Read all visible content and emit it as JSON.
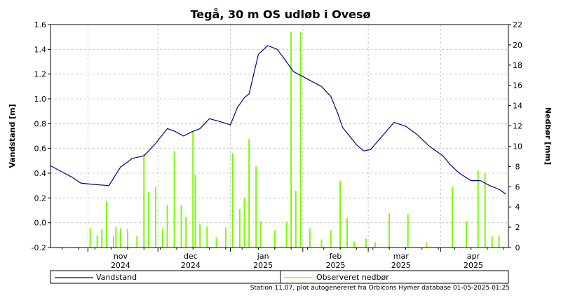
{
  "chart_data": {
    "type": "line",
    "title": "Tegå, 30 m OS udløb i Ovesø",
    "ylabel": "Vandstand [m]",
    "y2label": "Nedbør [mm]",
    "ylim": [
      -0.2,
      1.6
    ],
    "y2lim": [
      0,
      22
    ],
    "yticks": [
      "-0.2",
      "0.0",
      "0.2",
      "0.4",
      "0.6",
      "0.8",
      "1.0",
      "1.2",
      "1.4",
      "1.6"
    ],
    "y2ticks": [
      "0",
      "2",
      "4",
      "6",
      "8",
      "10",
      "12",
      "14",
      "16",
      "18",
      "20",
      "22"
    ],
    "xlim": [
      "2024-10-16",
      "2025-04-30"
    ],
    "x_month_labels": [
      {
        "month": "nov",
        "year": "2024",
        "date": "2024-11-15"
      },
      {
        "month": "dec",
        "year": "2024",
        "date": "2024-12-15"
      },
      {
        "month": "jan",
        "year": "2025",
        "date": "2025-01-15"
      },
      {
        "month": "feb",
        "year": "2025",
        "date": "2025-02-15"
      },
      {
        "month": "mar",
        "year": "2025",
        "date": "2025-03-15"
      },
      {
        "month": "apr",
        "year": "2025",
        "date": "2025-04-15"
      }
    ],
    "grid": true,
    "series": [
      {
        "name": "Vandstand",
        "type": "line",
        "axis": "left",
        "color": "#00008b",
        "x": [
          "2024-10-16",
          "2024-10-20",
          "2024-10-25",
          "2024-10-29",
          "2024-11-03",
          "2024-11-10",
          "2024-11-15",
          "2024-11-18",
          "2024-11-20",
          "2024-11-25",
          "2024-11-30",
          "2024-12-05",
          "2024-12-08",
          "2024-12-12",
          "2024-12-15",
          "2024-12-19",
          "2024-12-23",
          "2024-12-27",
          "2025-01-01",
          "2025-01-04",
          "2025-01-07",
          "2025-01-09",
          "2025-01-13",
          "2025-01-17",
          "2025-01-21",
          "2025-01-25",
          "2025-01-28",
          "2025-02-01",
          "2025-02-05",
          "2025-02-09",
          "2025-02-13",
          "2025-02-16",
          "2025-02-16",
          "2025-02-18",
          "2025-02-21",
          "2025-02-24",
          "2025-02-27",
          "2025-03-02",
          "2025-03-07",
          "2025-03-12",
          "2025-03-17",
          "2025-03-22",
          "2025-03-27",
          "2025-04-02",
          "2025-04-05",
          "2025-04-09",
          "2025-04-14",
          "2025-04-18",
          "2025-04-22",
          "2025-04-26",
          "2025-04-29"
        ],
        "values": [
          0.46,
          0.42,
          0.37,
          0.32,
          0.31,
          0.3,
          0.45,
          0.49,
          0.52,
          0.54,
          0.64,
          0.76,
          0.74,
          0.7,
          0.73,
          0.76,
          0.84,
          0.82,
          0.79,
          0.93,
          1.01,
          1.04,
          1.36,
          1.43,
          1.4,
          1.3,
          1.22,
          1.18,
          1.14,
          1.1,
          1.02,
          0.88,
          0.88,
          0.77,
          0.7,
          0.63,
          0.58,
          0.59,
          0.7,
          0.81,
          0.78,
          0.71,
          0.62,
          0.54,
          0.47,
          0.4,
          0.34,
          0.34,
          0.3,
          0.27,
          0.23
        ]
      },
      {
        "name": "Observeret nedbør",
        "type": "bar",
        "axis": "right",
        "color": "#7cfc00",
        "x": [
          "2024-11-02",
          "2024-11-05",
          "2024-11-07",
          "2024-11-09",
          "2024-11-12",
          "2024-11-13",
          "2024-11-15",
          "2024-11-18",
          "2024-11-22",
          "2024-11-25",
          "2024-11-27",
          "2024-11-30",
          "2024-12-03",
          "2024-12-05",
          "2024-12-08",
          "2024-12-11",
          "2024-12-13",
          "2024-12-16",
          "2024-12-17",
          "2024-12-19",
          "2024-12-22",
          "2024-12-26",
          "2024-12-30",
          "2025-01-02",
          "2025-01-05",
          "2025-01-07",
          "2025-01-09",
          "2025-01-12",
          "2025-01-14",
          "2025-01-20",
          "2025-01-25",
          "2025-01-27",
          "2025-01-29",
          "2025-01-31",
          "2025-02-04",
          "2025-02-09",
          "2025-02-13",
          "2025-02-17",
          "2025-02-20",
          "2025-02-23",
          "2025-02-28",
          "2025-03-04",
          "2025-03-10",
          "2025-03-18",
          "2025-03-26",
          "2025-04-06",
          "2025-04-12",
          "2025-04-17",
          "2025-04-20",
          "2025-04-23",
          "2025-04-26"
        ],
        "values": [
          1.9,
          1.2,
          1.8,
          4.6,
          1.1,
          2.0,
          1.9,
          1.8,
          1.1,
          9.2,
          5.5,
          6.0,
          1.9,
          4.2,
          9.5,
          4.2,
          3.0,
          11.5,
          7.2,
          2.3,
          2.1,
          1.0,
          2.0,
          9.3,
          3.8,
          4.9,
          10.7,
          8.0,
          2.6,
          1.7,
          2.5,
          21.3,
          5.6,
          21.3,
          1.9,
          0.8,
          1.7,
          6.6,
          2.9,
          0.6,
          0.9,
          0.5,
          3.4,
          3.3,
          0.5,
          6.0,
          2.6,
          7.6,
          7.4,
          1.1,
          1.2
        ]
      }
    ],
    "legend": {
      "position": "bottom"
    },
    "footer": "Station 11.07, plot autogenereret fra Orbicons Hymer database 01-05-2025 01:25"
  }
}
